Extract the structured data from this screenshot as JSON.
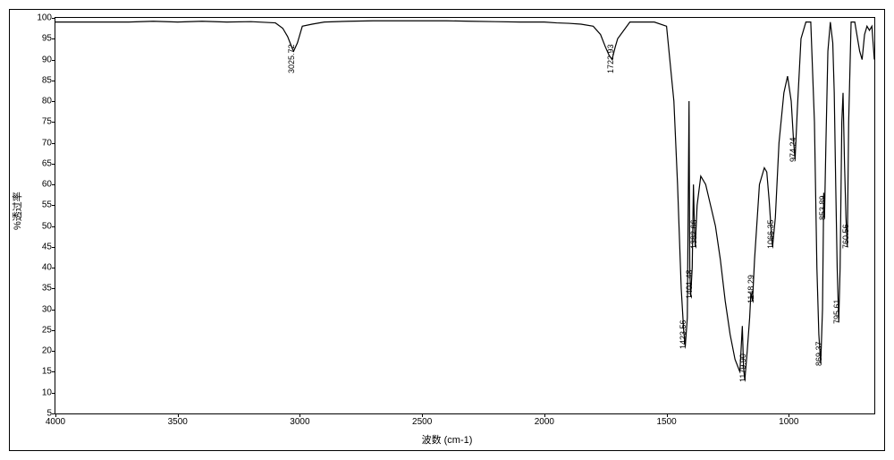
{
  "chart": {
    "type": "line",
    "xlabel": "波数 (cm-1)",
    "ylabel": "%透过率",
    "background_color": "#ffffff",
    "line_color": "#000000",
    "line_width": 1,
    "xlim": [
      4000,
      650
    ],
    "ylim": [
      5,
      100
    ],
    "x_ticks": [
      4000,
      3500,
      3000,
      2500,
      2000,
      1500,
      1000
    ],
    "y_ticks": [
      5,
      10,
      15,
      20,
      25,
      30,
      35,
      40,
      45,
      50,
      55,
      60,
      65,
      70,
      75,
      80,
      85,
      90,
      95,
      100
    ],
    "tick_fontsize": 10,
    "label_fontsize": 11,
    "peak_label_fontsize": 9,
    "peaks": [
      {
        "wn": 3025.72,
        "T": 92
      },
      {
        "wn": 1722.93,
        "T": 90
      },
      {
        "wn": 1423.56,
        "T": 21
      },
      {
        "wn": 1401.48,
        "T": 33
      },
      {
        "wn": 1382.66,
        "T": 45
      },
      {
        "wn": 1179.9,
        "T": 13
      },
      {
        "wn": 1148.29,
        "T": 32
      },
      {
        "wn": 1066.35,
        "T": 45
      },
      {
        "wn": 974.24,
        "T": 66
      },
      {
        "wn": 869.37,
        "T": 17
      },
      {
        "wn": 853.89,
        "T": 52
      },
      {
        "wn": 795.61,
        "T": 27
      },
      {
        "wn": 760.56,
        "T": 45
      }
    ],
    "curve_points": [
      [
        4000,
        99
      ],
      [
        3900,
        99
      ],
      [
        3800,
        99
      ],
      [
        3700,
        99
      ],
      [
        3600,
        99.2
      ],
      [
        3500,
        99
      ],
      [
        3400,
        99.2
      ],
      [
        3300,
        99
      ],
      [
        3200,
        99.1
      ],
      [
        3100,
        98.8
      ],
      [
        3070,
        97.5
      ],
      [
        3050,
        95.5
      ],
      [
        3030,
        92.5
      ],
      [
        3025.72,
        92
      ],
      [
        3010,
        94
      ],
      [
        2990,
        98
      ],
      [
        2950,
        98.5
      ],
      [
        2900,
        99
      ],
      [
        2800,
        99.2
      ],
      [
        2700,
        99.3
      ],
      [
        2600,
        99.3
      ],
      [
        2500,
        99.3
      ],
      [
        2400,
        99.3
      ],
      [
        2300,
        99.2
      ],
      [
        2200,
        99.1
      ],
      [
        2100,
        99
      ],
      [
        2000,
        99
      ],
      [
        1950,
        98.8
      ],
      [
        1900,
        98.7
      ],
      [
        1850,
        98.5
      ],
      [
        1800,
        98
      ],
      [
        1770,
        96
      ],
      [
        1750,
        93
      ],
      [
        1735,
        91
      ],
      [
        1722.93,
        90
      ],
      [
        1710,
        93
      ],
      [
        1700,
        95
      ],
      [
        1650,
        99
      ],
      [
        1600,
        99
      ],
      [
        1550,
        99
      ],
      [
        1500,
        98
      ],
      [
        1470,
        80
      ],
      [
        1455,
        60
      ],
      [
        1440,
        35
      ],
      [
        1430,
        25
      ],
      [
        1423.56,
        21
      ],
      [
        1415,
        28
      ],
      [
        1408,
        80
      ],
      [
        1405,
        40
      ],
      [
        1401.48,
        33
      ],
      [
        1395,
        40
      ],
      [
        1390,
        60
      ],
      [
        1386,
        50
      ],
      [
        1382.66,
        45
      ],
      [
        1375,
        55
      ],
      [
        1360,
        62
      ],
      [
        1340,
        60
      ],
      [
        1320,
        55
      ],
      [
        1300,
        50
      ],
      [
        1280,
        42
      ],
      [
        1260,
        32
      ],
      [
        1240,
        24
      ],
      [
        1220,
        18
      ],
      [
        1200,
        15
      ],
      [
        1190,
        26
      ],
      [
        1185,
        16
      ],
      [
        1179.9,
        13
      ],
      [
        1170,
        20
      ],
      [
        1160,
        28
      ],
      [
        1155,
        34
      ],
      [
        1148.29,
        32
      ],
      [
        1140,
        42
      ],
      [
        1120,
        60
      ],
      [
        1100,
        64
      ],
      [
        1090,
        63
      ],
      [
        1080,
        56
      ],
      [
        1072,
        49
      ],
      [
        1066.35,
        45
      ],
      [
        1055,
        52
      ],
      [
        1040,
        70
      ],
      [
        1020,
        82
      ],
      [
        1005,
        86
      ],
      [
        990,
        80
      ],
      [
        980,
        70
      ],
      [
        974.24,
        66
      ],
      [
        965,
        78
      ],
      [
        950,
        95
      ],
      [
        930,
        99
      ],
      [
        910,
        99
      ],
      [
        895,
        75
      ],
      [
        885,
        40
      ],
      [
        877,
        24
      ],
      [
        869.37,
        17
      ],
      [
        862,
        30
      ],
      [
        857,
        58
      ],
      [
        853.89,
        52
      ],
      [
        848,
        70
      ],
      [
        840,
        92
      ],
      [
        830,
        99
      ],
      [
        820,
        94
      ],
      [
        814,
        82
      ],
      [
        808,
        60
      ],
      [
        802,
        40
      ],
      [
        795.61,
        27
      ],
      [
        790,
        40
      ],
      [
        783,
        75
      ],
      [
        778,
        82
      ],
      [
        772,
        65
      ],
      [
        766,
        52
      ],
      [
        760.56,
        45
      ],
      [
        755,
        75
      ],
      [
        745,
        99
      ],
      [
        730,
        99
      ],
      [
        710,
        92
      ],
      [
        700,
        90
      ],
      [
        690,
        96
      ],
      [
        680,
        98
      ],
      [
        670,
        97
      ],
      [
        660,
        98
      ],
      [
        650,
        90
      ]
    ]
  }
}
